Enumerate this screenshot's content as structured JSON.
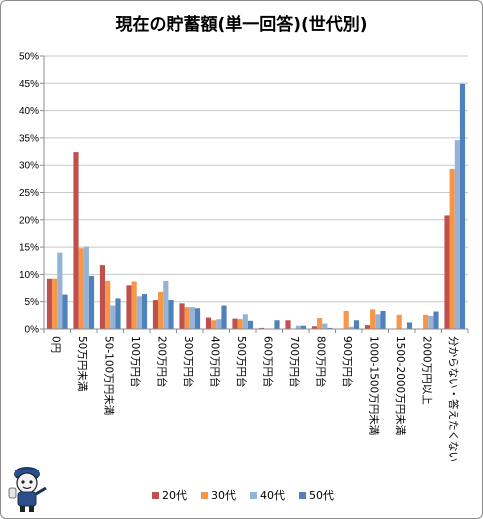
{
  "chart_data": {
    "type": "bar",
    "title": "現在の貯蓄額(単一回答)(世代別)",
    "xlabel": "",
    "ylabel": "",
    "ylim": [
      0,
      0.5
    ],
    "y_ticks": [
      "0%",
      "5%",
      "10%",
      "15%",
      "20%",
      "25%",
      "30%",
      "35%",
      "40%",
      "45%",
      "50%"
    ],
    "grid": true,
    "legend_position": "bottom",
    "categories": [
      "0円",
      "50万円未満",
      "50-100万円未満",
      "100万円台",
      "200万円台",
      "300万円台",
      "400万円台",
      "500万円台",
      "600万円台",
      "700万円台",
      "800万円台",
      "900万円台",
      "1000-1500万円未満",
      "1500-2000万円未満",
      "2000万円以上",
      "分からない・答えたくない"
    ],
    "series": [
      {
        "name": "20代",
        "color": "#c0504d",
        "values": [
          0.092,
          0.324,
          0.117,
          0.08,
          0.053,
          0.047,
          0.021,
          0.019,
          0.002,
          0.016,
          0.005,
          0.0,
          0.007,
          0.0,
          0.0,
          0.208
        ]
      },
      {
        "name": "30代",
        "color": "#f79646",
        "values": [
          0.092,
          0.148,
          0.088,
          0.087,
          0.068,
          0.04,
          0.016,
          0.018,
          0.0,
          0.0,
          0.02,
          0.033,
          0.036,
          0.026,
          0.026,
          0.293
        ]
      },
      {
        "name": "40代",
        "color": "#95b3d7",
        "values": [
          0.14,
          0.151,
          0.043,
          0.06,
          0.088,
          0.04,
          0.018,
          0.027,
          0.0,
          0.006,
          0.01,
          0.004,
          0.027,
          0.0,
          0.024,
          0.346
        ]
      },
      {
        "name": "50代",
        "color": "#4f81bd",
        "values": [
          0.063,
          0.097,
          0.056,
          0.064,
          0.053,
          0.038,
          0.043,
          0.015,
          0.016,
          0.006,
          0.002,
          0.016,
          0.033,
          0.012,
          0.032,
          0.449
        ]
      }
    ]
  }
}
